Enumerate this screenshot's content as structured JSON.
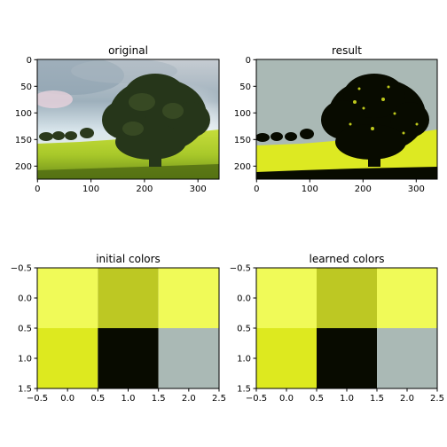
{
  "figure": {
    "background": "#ffffff"
  },
  "chart_data": [
    {
      "type": "image",
      "title": "original",
      "description_of_content": "",
      "x_ticks": [
        "0",
        "100",
        "200",
        "300"
      ],
      "y_ticks": [
        "0",
        "50",
        "100",
        "150",
        "200"
      ],
      "xlim": [
        -0.5,
        339.5
      ],
      "ylim": [
        224.5,
        -0.5
      ],
      "image_size": [
        340,
        225
      ]
    },
    {
      "type": "image",
      "title": "result",
      "x_ticks": [
        "0",
        "100",
        "200",
        "300"
      ],
      "y_ticks": [
        "0",
        "50",
        "100",
        "150",
        "200"
      ],
      "xlim": [
        -0.5,
        339.5
      ],
      "ylim": [
        224.5,
        -0.5
      ],
      "image_size": [
        340,
        225
      ],
      "palette": [
        "#aab9b5",
        "#080b00",
        "#dde922"
      ]
    },
    {
      "type": "heatmap",
      "title": "initial colors",
      "x_ticks": [
        "−0.5",
        "0.0",
        "0.5",
        "1.0",
        "1.5",
        "2.0",
        "2.5"
      ],
      "y_ticks": [
        "−0.5",
        "0.0",
        "0.5",
        "1.0",
        "1.5"
      ],
      "xlim": [
        -0.5,
        2.5
      ],
      "ylim": [
        1.5,
        -0.5
      ],
      "cells": [
        [
          "#f0fa58",
          "#bdc823",
          "#f0fa58"
        ],
        [
          "#dde91f",
          "#080b00",
          "#aab9b5"
        ]
      ]
    },
    {
      "type": "heatmap",
      "title": "learned colors",
      "x_ticks": [
        "−0.5",
        "0.0",
        "0.5",
        "1.0",
        "1.5",
        "2.0",
        "2.5"
      ],
      "y_ticks": [
        "−0.5",
        "0.0",
        "0.5",
        "1.0",
        "1.5"
      ],
      "xlim": [
        -0.5,
        2.5
      ],
      "ylim": [
        1.5,
        -0.5
      ],
      "cells": [
        [
          "#f0fa58",
          "#bdc823",
          "#f0fa58"
        ],
        [
          "#dde91f",
          "#080b00",
          "#aab9b5"
        ]
      ]
    }
  ]
}
